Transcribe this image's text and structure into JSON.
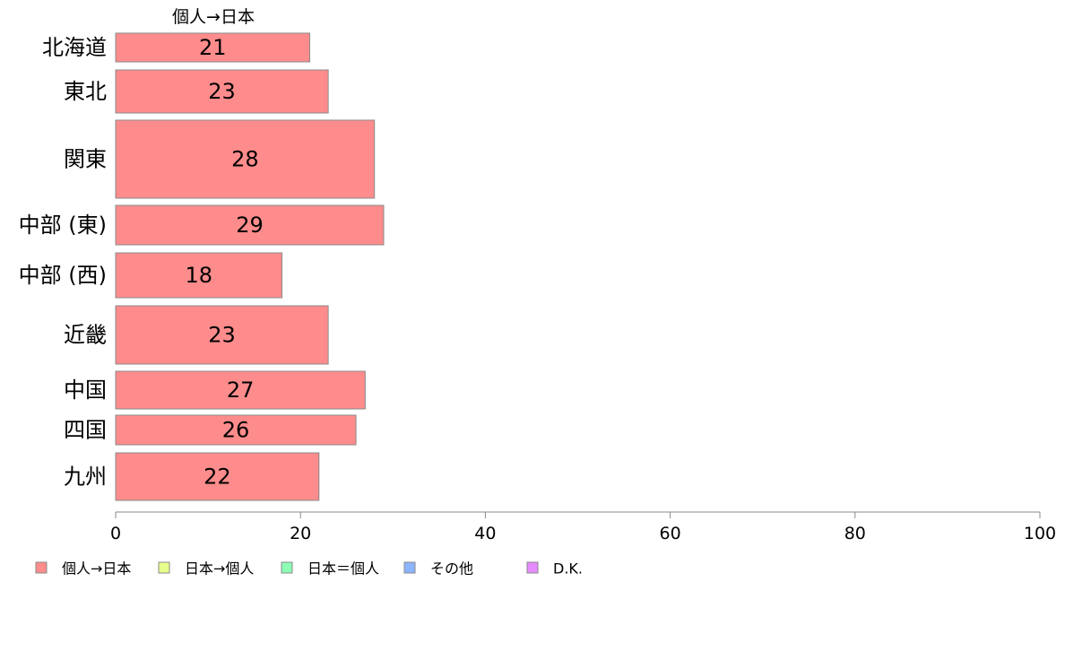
{
  "chart_data": {
    "type": "bar",
    "orientation": "horizontal",
    "stacked": true,
    "categories": [
      "北海道",
      "東北",
      "関東",
      "中部 (東)",
      "中部 (西)",
      "近畿",
      "中国",
      "四国",
      "九州"
    ],
    "series": [
      {
        "name": "個人→日本",
        "values": [
          21,
          23,
          28,
          29,
          18,
          23,
          27,
          26,
          22
        ],
        "color": "#FF8C8C"
      }
    ],
    "legend": [
      {
        "name": "個人→日本",
        "color": "#FF8C8C"
      },
      {
        "name": "日本→個人",
        "color": "#E6FF8C"
      },
      {
        "name": "日本＝個人",
        "color": "#8CFFB4"
      },
      {
        "name": "その他",
        "color": "#8CB4FF"
      },
      {
        "name": "D.K.",
        "color": "#E68CFF"
      }
    ],
    "series_header": "個人→日本",
    "xlim": [
      0,
      100
    ],
    "xticks": [
      0,
      20,
      40,
      60,
      80,
      100
    ],
    "legend_position": "bottom-left",
    "grid": false
  }
}
